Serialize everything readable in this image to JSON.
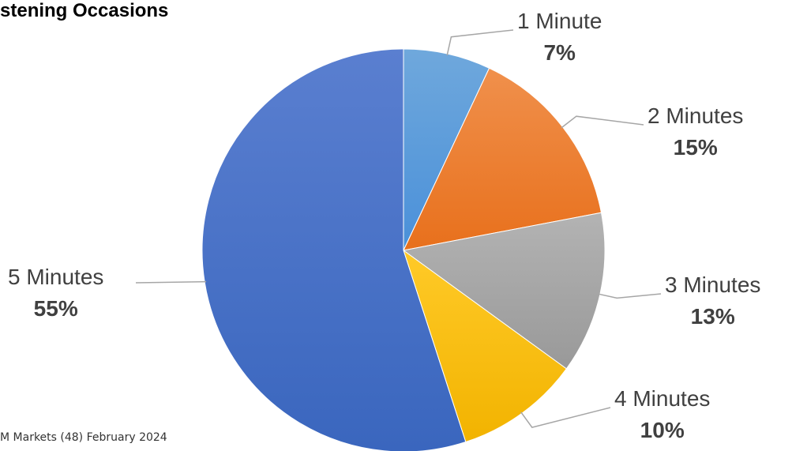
{
  "chart_data": {
    "type": "pie",
    "title": "stening Occasions",
    "source_note": "M Markets (48) February 2024",
    "slices": [
      {
        "label": "1 Minute",
        "value_label": "7%",
        "value": 7,
        "color": "#5b9bd5"
      },
      {
        "label": "2 Minutes",
        "value_label": "15%",
        "value": 15,
        "color": "#ed7d31"
      },
      {
        "label": "3 Minutes",
        "value_label": "13%",
        "value": 13,
        "color": "#a5a5a5"
      },
      {
        "label": "4 Minutes",
        "value_label": "10%",
        "value": 10,
        "color": "#ffc000"
      },
      {
        "label": "5 Minutes",
        "value_label": "55%",
        "value": 55,
        "color": "#4472c4"
      }
    ]
  }
}
